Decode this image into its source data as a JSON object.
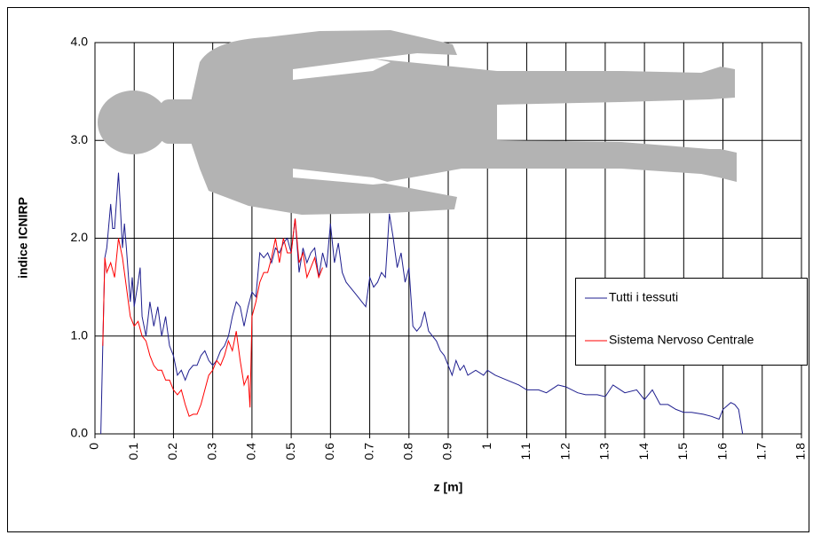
{
  "chart_data": {
    "type": "line",
    "x_label": "z [m]",
    "y_label": "indice ICNIRP",
    "xlim": [
      0,
      1.8
    ],
    "ylim": [
      0,
      4
    ],
    "xticks": [
      0,
      0.1,
      0.2,
      0.3,
      0.4,
      0.5,
      0.6,
      0.7,
      0.8,
      0.9,
      1,
      1.1,
      1.2,
      1.3,
      1.4,
      1.5,
      1.6,
      1.7,
      1.8
    ],
    "yticks": [
      {
        "value": 0,
        "label": "0.0"
      },
      {
        "value": 1,
        "label": "1.0"
      },
      {
        "value": 2,
        "label": "2.0"
      },
      {
        "value": 3,
        "label": "3.0"
      },
      {
        "value": 4,
        "label": "4.0"
      }
    ],
    "grid": true,
    "legend": "right",
    "series": [
      {
        "name": "Tutti i tessuti",
        "color": "#1f1f8f",
        "x": [
          0.015,
          0.02,
          0.025,
          0.03,
          0.04,
          0.045,
          0.05,
          0.06,
          0.065,
          0.07,
          0.075,
          0.08,
          0.09,
          0.095,
          0.1,
          0.11,
          0.115,
          0.12,
          0.13,
          0.14,
          0.15,
          0.16,
          0.17,
          0.18,
          0.19,
          0.2,
          0.21,
          0.22,
          0.23,
          0.24,
          0.25,
          0.26,
          0.27,
          0.28,
          0.29,
          0.3,
          0.31,
          0.32,
          0.33,
          0.34,
          0.35,
          0.36,
          0.37,
          0.38,
          0.39,
          0.4,
          0.41,
          0.42,
          0.43,
          0.44,
          0.45,
          0.46,
          0.47,
          0.48,
          0.49,
          0.5,
          0.51,
          0.52,
          0.53,
          0.54,
          0.55,
          0.56,
          0.57,
          0.58,
          0.59,
          0.6,
          0.61,
          0.62,
          0.63,
          0.64,
          0.65,
          0.66,
          0.67,
          0.68,
          0.69,
          0.7,
          0.71,
          0.72,
          0.73,
          0.74,
          0.75,
          0.76,
          0.77,
          0.78,
          0.79,
          0.8,
          0.81,
          0.82,
          0.83,
          0.84,
          0.85,
          0.86,
          0.87,
          0.88,
          0.89,
          0.9,
          0.91,
          0.92,
          0.93,
          0.94,
          0.95,
          0.97,
          0.99,
          1.0,
          1.02,
          1.05,
          1.08,
          1.1,
          1.13,
          1.15,
          1.18,
          1.2,
          1.23,
          1.25,
          1.28,
          1.3,
          1.32,
          1.35,
          1.38,
          1.4,
          1.42,
          1.44,
          1.46,
          1.48,
          1.5,
          1.52,
          1.55,
          1.57,
          1.59,
          1.6,
          1.62,
          1.63,
          1.64,
          1.65
        ],
        "values": [
          0,
          0.9,
          1.8,
          1.9,
          2.35,
          2.1,
          2.1,
          2.67,
          2.3,
          1.9,
          2.15,
          1.9,
          1.35,
          1.6,
          1.3,
          1.55,
          1.7,
          1.2,
          1.0,
          1.35,
          1.1,
          1.3,
          1.0,
          1.2,
          0.9,
          0.8,
          0.6,
          0.65,
          0.55,
          0.65,
          0.7,
          0.7,
          0.8,
          0.85,
          0.75,
          0.7,
          0.75,
          0.85,
          0.9,
          1.0,
          1.2,
          1.35,
          1.3,
          1.1,
          1.3,
          1.45,
          1.4,
          1.85,
          1.8,
          1.85,
          1.75,
          1.9,
          1.85,
          1.95,
          2.0,
          1.85,
          2.2,
          1.65,
          1.9,
          1.75,
          1.85,
          1.9,
          1.6,
          1.85,
          1.7,
          2.15,
          1.75,
          1.95,
          1.65,
          1.55,
          1.5,
          1.45,
          1.4,
          1.35,
          1.3,
          1.6,
          1.5,
          1.55,
          1.65,
          1.6,
          2.25,
          2.0,
          1.7,
          1.85,
          1.55,
          1.7,
          1.1,
          1.05,
          1.1,
          1.25,
          1.05,
          1.0,
          0.95,
          0.85,
          0.8,
          0.7,
          0.6,
          0.75,
          0.65,
          0.7,
          0.6,
          0.65,
          0.6,
          0.65,
          0.6,
          0.55,
          0.5,
          0.45,
          0.45,
          0.42,
          0.5,
          0.48,
          0.42,
          0.4,
          0.4,
          0.38,
          0.5,
          0.42,
          0.45,
          0.35,
          0.45,
          0.3,
          0.3,
          0.25,
          0.22,
          0.22,
          0.2,
          0.18,
          0.15,
          0.25,
          0.32,
          0.3,
          0.25,
          0
        ]
      },
      {
        "name": "Sistema Nervoso Centrale",
        "color": "#ff0000",
        "x": [
          0.02,
          0.025,
          0.03,
          0.04,
          0.05,
          0.06,
          0.07,
          0.08,
          0.09,
          0.1,
          0.11,
          0.12,
          0.13,
          0.14,
          0.15,
          0.16,
          0.17,
          0.18,
          0.19,
          0.2,
          0.21,
          0.22,
          0.23,
          0.24,
          0.25,
          0.26,
          0.27,
          0.28,
          0.29,
          0.3,
          0.31,
          0.32,
          0.33,
          0.34,
          0.35,
          0.36,
          0.37,
          0.38,
          0.39,
          0.395,
          0.4,
          0.41,
          0.42,
          0.43,
          0.44,
          0.45,
          0.46,
          0.47,
          0.48,
          0.49,
          0.5,
          0.51,
          0.52,
          0.53,
          0.54,
          0.55,
          0.56,
          0.57,
          0.58
        ],
        "values": [
          0.9,
          1.8,
          1.65,
          1.75,
          1.6,
          2.0,
          1.8,
          1.5,
          1.2,
          1.1,
          1.15,
          1.0,
          0.95,
          0.8,
          0.7,
          0.65,
          0.65,
          0.55,
          0.55,
          0.45,
          0.4,
          0.45,
          0.3,
          0.18,
          0.2,
          0.2,
          0.3,
          0.45,
          0.6,
          0.65,
          0.75,
          0.7,
          0.8,
          0.95,
          0.85,
          1.05,
          0.75,
          0.5,
          0.6,
          0.27,
          1.2,
          1.35,
          1.55,
          1.65,
          1.65,
          1.8,
          2.0,
          1.75,
          2.0,
          1.85,
          1.85,
          2.2,
          1.75,
          1.85,
          1.6,
          1.7,
          1.8,
          1.6,
          1.7
        ]
      }
    ]
  }
}
